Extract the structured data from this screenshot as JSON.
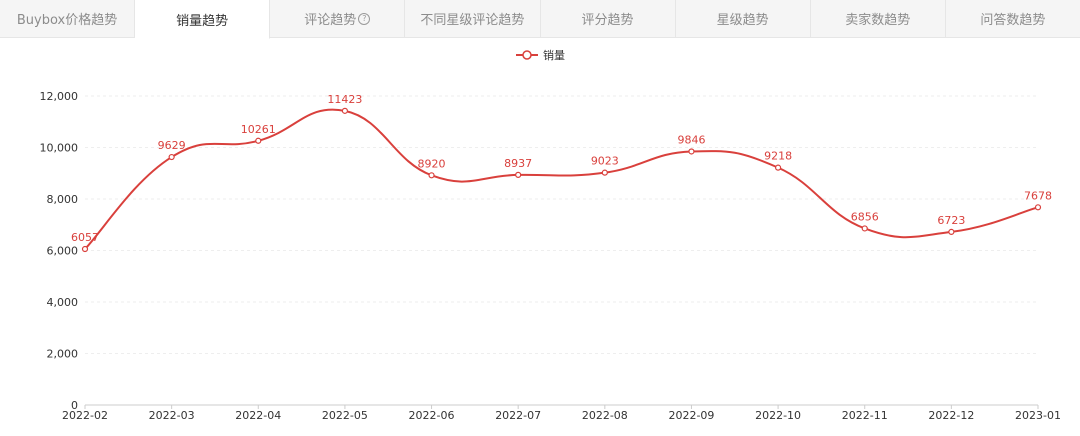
{
  "tabs": [
    {
      "label": "Buybox价格趋势",
      "active": false
    },
    {
      "label": "销量趋势",
      "active": true
    },
    {
      "label": "评论趋势",
      "active": false,
      "help_icon": "question-circle-icon"
    },
    {
      "label": "不同星级评论趋势",
      "active": false
    },
    {
      "label": "评分趋势",
      "active": false
    },
    {
      "label": "星级趋势",
      "active": false
    },
    {
      "label": "卖家数趋势",
      "active": false
    },
    {
      "label": "问答数趋势",
      "active": false
    }
  ],
  "colors": {
    "series": "#d9403c",
    "grid": "#eeeeee",
    "axis": "#cccccc"
  },
  "chart_data": {
    "type": "line",
    "smooth": true,
    "categories": [
      "2022-02",
      "2022-03",
      "2022-04",
      "2022-05",
      "2022-06",
      "2022-07",
      "2022-08",
      "2022-09",
      "2022-10",
      "2022-11",
      "2022-12",
      "2023-01"
    ],
    "series": [
      {
        "name": "销量",
        "values": [
          6057,
          9629,
          10261,
          11423,
          8920,
          8937,
          9023,
          9846,
          9218,
          6856,
          6723,
          7678
        ]
      }
    ],
    "ylim": [
      0,
      12000
    ],
    "yticks": [
      "0",
      "2,000",
      "4,000",
      "6,000",
      "8,000",
      "10,000",
      "12,000"
    ],
    "ytick_values": [
      0,
      2000,
      4000,
      6000,
      8000,
      10000,
      12000
    ],
    "grid": true,
    "legend_position": "top-center",
    "data_labels": true
  }
}
